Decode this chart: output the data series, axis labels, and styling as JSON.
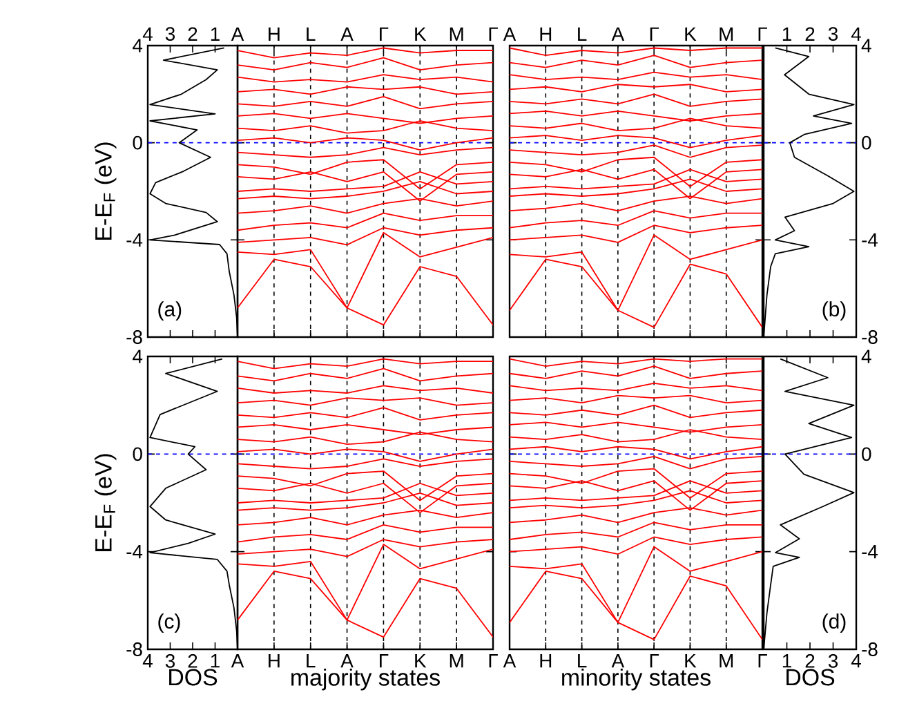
{
  "chart_data": [
    {
      "type": "line",
      "ylabel": "E-E$_{F}$ (eV)",
      "xlim": [
        4,
        0
      ],
      "xticks": [
        4,
        3,
        2,
        1
      ],
      "ylim": [
        -8,
        4
      ],
      "yticks": [
        -8,
        -4,
        0,
        4
      ],
      "annotations": [
        "(a)"
      ],
      "ref_lines": [
        {
          "axis": "y",
          "value": 0,
          "color": "#0000ff",
          "line_style": "dashed"
        }
      ],
      "series": [
        {
          "color": "#000000",
          "x": [
            0.6,
            3.3,
            0.9,
            1.4,
            2.5,
            3.9,
            1.0,
            3.9,
            1.8,
            2.6,
            1.2,
            2.4,
            3.65,
            3.9,
            3.2,
            1.4,
            0.9,
            2.8,
            3.9,
            0.8,
            0.47,
            0.37,
            0.16,
            0.04,
            0
          ],
          "values": [
            3.9,
            3.4,
            3.0,
            2.6,
            2.0,
            1.57,
            1.19,
            0.9,
            0.53,
            0,
            -0.6,
            -1.17,
            -1.64,
            -2.1,
            -2.5,
            -2.87,
            -3.25,
            -3.8,
            -4.0,
            -4.19,
            -4.57,
            -5.3,
            -6.26,
            -7.2,
            -8
          ]
        }
      ]
    },
    {
      "type": "line",
      "categories": [
        "A",
        "H",
        "L",
        "A",
        "Γ",
        "K",
        "M",
        "Γ"
      ],
      "ylim": [
        -8,
        4
      ],
      "yticks": [
        -8,
        -4,
        0,
        4
      ],
      "tick_labels": "x",
      "grid": "x",
      "ref_lines": [
        {
          "axis": "y",
          "value": 0,
          "color": "#0000ff",
          "line_style": "dashed"
        }
      ],
      "series": [
        {
          "color": "#ff0000",
          "values": [
            -6.8,
            -4.8,
            -5.1,
            -6.8,
            -7.5,
            -5.1,
            -5.5,
            -7.5
          ]
        },
        {
          "color": "#ff0000",
          "values": [
            -4.5,
            -4.6,
            -4.4,
            -6.8,
            -3.7,
            -4.7,
            -4.3,
            -3.9
          ]
        },
        {
          "color": "#ff0000",
          "values": [
            -4.1,
            -4.0,
            -3.9,
            -4.2,
            -3.5,
            -3.8,
            -3.6,
            -3.5
          ]
        },
        {
          "color": "#ff0000",
          "values": [
            -3.6,
            -3.4,
            -3.3,
            -3.5,
            -2.9,
            -3.2,
            -3.0,
            -3.0
          ]
        },
        {
          "color": "#ff0000",
          "values": [
            -2.9,
            -2.8,
            -2.6,
            -2.9,
            -2.5,
            -2.3,
            -2.6,
            -2.4
          ]
        },
        {
          "color": "#ff0000",
          "values": [
            -2.3,
            -2.2,
            -2.3,
            -2.2,
            -2.0,
            -1.6,
            -2.1,
            -2.0
          ]
        },
        {
          "color": "#ff0000",
          "values": [
            -2.0,
            -1.9,
            -2.0,
            -1.9,
            -1.8,
            -1.2,
            -1.7,
            -1.6
          ]
        },
        {
          "color": "#ff0000",
          "values": [
            -1.4,
            -1.5,
            -1.2,
            -1.6,
            -1.2,
            -2.4,
            -1.3,
            -1.2
          ]
        },
        {
          "color": "#ff0000",
          "values": [
            -0.9,
            -1.0,
            -1.3,
            -0.8,
            -0.7,
            -1.9,
            -0.9,
            -0.8
          ]
        },
        {
          "color": "#ff0000",
          "values": [
            -0.4,
            -0.5,
            -0.6,
            -0.5,
            -0.2,
            -0.5,
            -0.3,
            -0.2
          ]
        },
        {
          "color": "#ff0000",
          "values": [
            0.1,
            0.2,
            0.0,
            0.2,
            0.1,
            -0.3,
            0.0,
            0.2
          ]
        },
        {
          "color": "#ff0000",
          "values": [
            0.6,
            0.5,
            0.7,
            0.4,
            0.5,
            0.9,
            0.6,
            0.5
          ]
        },
        {
          "color": "#ff0000",
          "values": [
            1.1,
            1.2,
            1.0,
            1.2,
            1.0,
            0.8,
            1.0,
            1.1
          ]
        },
        {
          "color": "#ff0000",
          "values": [
            1.6,
            1.5,
            1.7,
            1.5,
            1.9,
            1.4,
            1.6,
            1.7
          ]
        },
        {
          "color": "#ff0000",
          "values": [
            2.1,
            2.2,
            2.0,
            2.3,
            2.2,
            2.3,
            2.0,
            2.1
          ]
        },
        {
          "color": "#ff0000",
          "values": [
            2.7,
            2.5,
            2.6,
            2.5,
            2.8,
            2.6,
            2.7,
            2.5
          ]
        },
        {
          "color": "#ff0000",
          "values": [
            3.2,
            3.0,
            3.3,
            3.1,
            3.5,
            3.0,
            3.2,
            3.3
          ]
        },
        {
          "color": "#ff0000",
          "values": [
            3.8,
            3.5,
            3.7,
            3.6,
            3.9,
            3.7,
            3.8,
            3.8
          ]
        }
      ]
    },
    {
      "type": "line",
      "categories": [
        "A",
        "H",
        "L",
        "A",
        "Γ",
        "K",
        "M",
        "Γ"
      ],
      "ylim": [
        -8,
        4
      ],
      "yticks": [
        -8,
        -4,
        0,
        4
      ],
      "tick_labels": "x",
      "grid": "x",
      "ref_lines": [
        {
          "axis": "y",
          "value": 0,
          "color": "#0000ff",
          "line_style": "dashed"
        }
      ],
      "series": [
        {
          "color": "#ff0000",
          "values": [
            -6.9,
            -4.8,
            -5.1,
            -6.9,
            -7.6,
            -5.0,
            -5.4,
            -7.6
          ]
        },
        {
          "color": "#ff0000",
          "values": [
            -4.6,
            -4.7,
            -4.5,
            -6.9,
            -3.8,
            -4.8,
            -4.4,
            -4.0
          ]
        },
        {
          "color": "#ff0000",
          "values": [
            -4.0,
            -3.9,
            -3.8,
            -4.1,
            -3.4,
            -3.7,
            -3.5,
            -3.4
          ]
        },
        {
          "color": "#ff0000",
          "values": [
            -3.5,
            -3.3,
            -3.2,
            -3.4,
            -2.8,
            -3.1,
            -2.9,
            -2.9
          ]
        },
        {
          "color": "#ff0000",
          "values": [
            -2.8,
            -2.7,
            -2.5,
            -2.8,
            -2.4,
            -2.2,
            -2.5,
            -2.3
          ]
        },
        {
          "color": "#ff0000",
          "values": [
            -2.2,
            -2.1,
            -2.2,
            -2.1,
            -1.9,
            -1.5,
            -2.0,
            -1.9
          ]
        },
        {
          "color": "#ff0000",
          "values": [
            -1.9,
            -1.8,
            -1.9,
            -1.8,
            -1.7,
            -1.1,
            -1.6,
            -1.5
          ]
        },
        {
          "color": "#ff0000",
          "values": [
            -1.3,
            -1.4,
            -1.1,
            -1.5,
            -1.1,
            -2.3,
            -1.2,
            -1.1
          ]
        },
        {
          "color": "#ff0000",
          "values": [
            -0.8,
            -0.9,
            -1.2,
            -0.7,
            -0.6,
            -1.8,
            -0.8,
            -0.7
          ]
        },
        {
          "color": "#ff0000",
          "values": [
            -0.3,
            -0.4,
            -0.5,
            -0.4,
            -0.1,
            -0.6,
            -0.2,
            -0.1
          ]
        },
        {
          "color": "#ff0000",
          "values": [
            0.2,
            0.3,
            0.1,
            0.3,
            0.2,
            -0.2,
            0.1,
            0.3
          ]
        },
        {
          "color": "#ff0000",
          "values": [
            0.7,
            0.6,
            0.8,
            0.5,
            0.6,
            1.0,
            0.7,
            0.6
          ]
        },
        {
          "color": "#ff0000",
          "values": [
            1.2,
            1.3,
            1.1,
            1.3,
            1.1,
            0.9,
            1.1,
            1.2
          ]
        },
        {
          "color": "#ff0000",
          "values": [
            1.7,
            1.6,
            1.8,
            1.6,
            2.0,
            1.5,
            1.7,
            1.8
          ]
        },
        {
          "color": "#ff0000",
          "values": [
            2.2,
            2.3,
            2.1,
            2.4,
            2.3,
            2.4,
            2.1,
            2.2
          ]
        },
        {
          "color": "#ff0000",
          "values": [
            2.8,
            2.6,
            2.7,
            2.6,
            2.9,
            2.7,
            2.8,
            2.6
          ]
        },
        {
          "color": "#ff0000",
          "values": [
            3.3,
            3.1,
            3.4,
            3.2,
            3.6,
            3.1,
            3.3,
            3.4
          ]
        },
        {
          "color": "#ff0000",
          "values": [
            3.9,
            3.6,
            3.8,
            3.7,
            3.9,
            3.8,
            3.9,
            3.9
          ]
        }
      ]
    },
    {
      "type": "line",
      "xlim": [
        0,
        4
      ],
      "xticks": [
        1,
        2,
        3,
        4
      ],
      "ylim": [
        -8,
        4
      ],
      "yticks": [
        -8,
        -4,
        0,
        4
      ],
      "annotations": [
        "(b)"
      ],
      "ref_lines": [
        {
          "axis": "y",
          "value": 0,
          "color": "#0000ff",
          "line_style": "dashed"
        }
      ],
      "series": [
        {
          "color": "#000000",
          "x": [
            0.5,
            1.95,
            0.9,
            1.95,
            3.9,
            2.15,
            3.8,
            1.75,
            1.13,
            1.33,
            2.77,
            3.9,
            3.0,
            0.92,
            1.33,
            0.5,
            1.95,
            0.5,
            0.3,
            0.14,
            0
          ],
          "values": [
            3.9,
            3.55,
            2.8,
            2.0,
            1.57,
            1.1,
            0.8,
            0.34,
            0,
            -0.6,
            -1.36,
            -2.0,
            -2.5,
            -3.06,
            -3.62,
            -4.0,
            -4.28,
            -4.57,
            -5.1,
            -6.26,
            -8
          ]
        }
      ]
    },
    {
      "type": "line",
      "ylabel": "E-E$_{F}$ (eV)",
      "xlabel": "DOS",
      "xlim": [
        4,
        0
      ],
      "xticks": [
        4,
        3,
        2,
        1
      ],
      "ylim": [
        -8,
        4
      ],
      "yticks": [
        -8,
        -4,
        0,
        4
      ],
      "annotations": [
        "(c)"
      ],
      "ref_lines": [
        {
          "axis": "y",
          "value": 0,
          "color": "#0000ff",
          "line_style": "dashed"
        }
      ],
      "series": [
        {
          "color": "#000000",
          "x": [
            0.68,
            3.2,
            0.9,
            3.45,
            3.9,
            1.9,
            2.2,
            1.4,
            3.2,
            3.9,
            3.2,
            1.0,
            2.2,
            3.9,
            0.9,
            0.47,
            0.37,
            0.16,
            0.04,
            0
          ],
          "values": [
            3.9,
            3.3,
            2.57,
            1.62,
            0.68,
            0.3,
            0,
            -0.64,
            -1.4,
            -2.15,
            -2.7,
            -3.28,
            -3.66,
            -4.04,
            -4.32,
            -4.8,
            -5.36,
            -6.3,
            -7.25,
            -8
          ]
        }
      ]
    },
    {
      "type": "line",
      "xlabel": "majority states",
      "categories": [
        "A",
        "H",
        "L",
        "A",
        "Γ",
        "K",
        "M",
        "Γ"
      ],
      "ylim": [
        -8,
        4
      ],
      "yticks": [
        -8,
        -4,
        0,
        4
      ],
      "tick_labels": "x",
      "grid": "x",
      "ref_lines": [
        {
          "axis": "y",
          "value": 0,
          "color": "#0000ff",
          "line_style": "dashed"
        }
      ],
      "series": [
        {
          "color": "#ff0000",
          "values": [
            -6.8,
            -4.8,
            -5.1,
            -6.8,
            -7.5,
            -5.1,
            -5.5,
            -7.5
          ]
        },
        {
          "color": "#ff0000",
          "values": [
            -4.5,
            -4.6,
            -4.4,
            -6.8,
            -3.7,
            -4.7,
            -4.3,
            -3.9
          ]
        },
        {
          "color": "#ff0000",
          "values": [
            -4.1,
            -4.0,
            -3.9,
            -4.2,
            -3.5,
            -3.8,
            -3.6,
            -3.5
          ]
        },
        {
          "color": "#ff0000",
          "values": [
            -3.6,
            -3.4,
            -3.3,
            -3.5,
            -2.9,
            -3.2,
            -3.0,
            -3.0
          ]
        },
        {
          "color": "#ff0000",
          "values": [
            -2.9,
            -2.8,
            -2.6,
            -2.9,
            -2.5,
            -2.3,
            -2.6,
            -2.4
          ]
        },
        {
          "color": "#ff0000",
          "values": [
            -2.3,
            -2.2,
            -2.3,
            -2.2,
            -2.0,
            -1.6,
            -2.1,
            -2.0
          ]
        },
        {
          "color": "#ff0000",
          "values": [
            -2.0,
            -1.9,
            -2.0,
            -1.9,
            -1.8,
            -1.2,
            -1.7,
            -1.6
          ]
        },
        {
          "color": "#ff0000",
          "values": [
            -1.4,
            -1.5,
            -1.2,
            -1.6,
            -1.2,
            -2.4,
            -1.3,
            -1.2
          ]
        },
        {
          "color": "#ff0000",
          "values": [
            -0.9,
            -1.0,
            -1.3,
            -0.8,
            -0.7,
            -1.9,
            -0.9,
            -0.8
          ]
        },
        {
          "color": "#ff0000",
          "values": [
            -0.4,
            -0.5,
            -0.6,
            -0.5,
            -0.2,
            -0.5,
            -0.3,
            -0.2
          ]
        },
        {
          "color": "#ff0000",
          "values": [
            0.1,
            0.2,
            0.0,
            0.2,
            0.1,
            -0.3,
            0.0,
            0.2
          ]
        },
        {
          "color": "#ff0000",
          "values": [
            0.6,
            0.5,
            0.7,
            0.4,
            0.5,
            0.9,
            0.6,
            0.5
          ]
        },
        {
          "color": "#ff0000",
          "values": [
            1.1,
            1.2,
            1.0,
            1.2,
            1.0,
            0.8,
            1.0,
            1.1
          ]
        },
        {
          "color": "#ff0000",
          "values": [
            1.6,
            1.5,
            1.7,
            1.5,
            1.9,
            1.4,
            1.6,
            1.7
          ]
        },
        {
          "color": "#ff0000",
          "values": [
            2.1,
            2.2,
            2.0,
            2.3,
            2.2,
            2.3,
            2.0,
            2.1
          ]
        },
        {
          "color": "#ff0000",
          "values": [
            2.7,
            2.5,
            2.6,
            2.5,
            2.8,
            2.6,
            2.7,
            2.5
          ]
        },
        {
          "color": "#ff0000",
          "values": [
            3.2,
            3.0,
            3.3,
            3.1,
            3.5,
            3.0,
            3.2,
            3.3
          ]
        },
        {
          "color": "#ff0000",
          "values": [
            3.8,
            3.5,
            3.7,
            3.6,
            3.9,
            3.7,
            3.8,
            3.8
          ]
        }
      ]
    },
    {
      "type": "line",
      "xlabel": "minority states",
      "categories": [
        "A",
        "H",
        "L",
        "A",
        "Γ",
        "K",
        "M",
        "Γ"
      ],
      "ylim": [
        -8,
        4
      ],
      "yticks": [
        -8,
        -4,
        0,
        4
      ],
      "tick_labels": "x",
      "grid": "x",
      "ref_lines": [
        {
          "axis": "y",
          "value": 0,
          "color": "#0000ff",
          "line_style": "dashed"
        }
      ],
      "series": [
        {
          "color": "#ff0000",
          "values": [
            -6.9,
            -4.8,
            -5.1,
            -6.9,
            -7.6,
            -5.0,
            -5.4,
            -7.6
          ]
        },
        {
          "color": "#ff0000",
          "values": [
            -4.6,
            -4.7,
            -4.5,
            -6.9,
            -3.8,
            -4.8,
            -4.4,
            -4.0
          ]
        },
        {
          "color": "#ff0000",
          "values": [
            -4.0,
            -3.9,
            -3.8,
            -4.1,
            -3.4,
            -3.7,
            -3.5,
            -3.4
          ]
        },
        {
          "color": "#ff0000",
          "values": [
            -3.5,
            -3.3,
            -3.2,
            -3.4,
            -2.8,
            -3.1,
            -2.9,
            -2.9
          ]
        },
        {
          "color": "#ff0000",
          "values": [
            -2.8,
            -2.7,
            -2.5,
            -2.8,
            -2.4,
            -2.2,
            -2.5,
            -2.3
          ]
        },
        {
          "color": "#ff0000",
          "values": [
            -2.2,
            -2.1,
            -2.2,
            -2.1,
            -1.9,
            -1.5,
            -2.0,
            -1.9
          ]
        },
        {
          "color": "#ff0000",
          "values": [
            -1.9,
            -1.8,
            -1.9,
            -1.8,
            -1.7,
            -1.1,
            -1.6,
            -1.5
          ]
        },
        {
          "color": "#ff0000",
          "values": [
            -1.3,
            -1.4,
            -1.1,
            -1.5,
            -1.1,
            -2.3,
            -1.2,
            -1.1
          ]
        },
        {
          "color": "#ff0000",
          "values": [
            -0.8,
            -0.9,
            -1.2,
            -0.7,
            -0.6,
            -1.8,
            -0.8,
            -0.7
          ]
        },
        {
          "color": "#ff0000",
          "values": [
            -0.3,
            -0.4,
            -0.5,
            -0.4,
            -0.1,
            -0.6,
            -0.2,
            -0.1
          ]
        },
        {
          "color": "#ff0000",
          "values": [
            0.2,
            0.3,
            0.1,
            0.3,
            0.2,
            -0.2,
            0.1,
            0.3
          ]
        },
        {
          "color": "#ff0000",
          "values": [
            0.7,
            0.6,
            0.8,
            0.5,
            0.6,
            1.0,
            0.7,
            0.6
          ]
        },
        {
          "color": "#ff0000",
          "values": [
            1.2,
            1.3,
            1.1,
            1.3,
            1.1,
            0.9,
            1.1,
            1.2
          ]
        },
        {
          "color": "#ff0000",
          "values": [
            1.7,
            1.6,
            1.8,
            1.6,
            2.0,
            1.5,
            1.7,
            1.8
          ]
        },
        {
          "color": "#ff0000",
          "values": [
            2.2,
            2.3,
            2.1,
            2.4,
            2.3,
            2.4,
            2.1,
            2.2
          ]
        },
        {
          "color": "#ff0000",
          "values": [
            2.8,
            2.6,
            2.7,
            2.6,
            2.9,
            2.7,
            2.8,
            2.6
          ]
        },
        {
          "color": "#ff0000",
          "values": [
            3.3,
            3.1,
            3.4,
            3.2,
            3.6,
            3.1,
            3.3,
            3.4
          ]
        },
        {
          "color": "#ff0000",
          "values": [
            3.9,
            3.6,
            3.8,
            3.7,
            3.9,
            3.8,
            3.9,
            3.9
          ]
        }
      ]
    },
    {
      "type": "line",
      "xlabel": "DOS",
      "xlim": [
        0,
        4
      ],
      "xticks": [
        1,
        2,
        3,
        4
      ],
      "ylim": [
        -8,
        4
      ],
      "yticks": [
        -8,
        -4,
        0,
        4
      ],
      "annotations": [
        "(d)"
      ],
      "ref_lines": [
        {
          "axis": "y",
          "value": 0,
          "color": "#0000ff",
          "line_style": "dashed"
        }
      ],
      "series": [
        {
          "color": "#000000",
          "x": [
            0.72,
            2.77,
            0.92,
            3.9,
            1.95,
            3.8,
            0.92,
            1.74,
            3.9,
            2.56,
            0.72,
            1.54,
            0.51,
            1.54,
            0.41,
            0.3,
            0.14,
            0
          ],
          "values": [
            3.9,
            3.13,
            2.57,
            2.0,
            1.25,
            0.68,
            0,
            -0.83,
            -1.58,
            -2.15,
            -2.9,
            -3.47,
            -4.04,
            -4.23,
            -4.6,
            -5.36,
            -6.5,
            -8
          ]
        }
      ]
    }
  ]
}
